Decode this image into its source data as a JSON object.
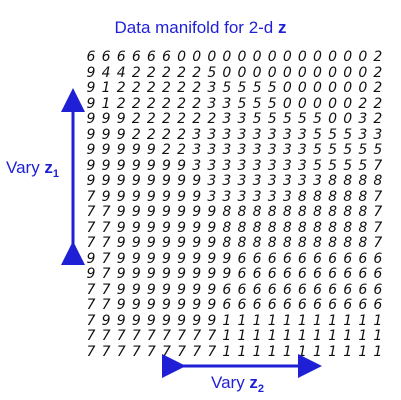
{
  "title": {
    "text": "Data manifold for 2-d ",
    "var": "z"
  },
  "labels": {
    "z1": {
      "prefix": "Vary ",
      "var": "z",
      "sub": "1"
    },
    "z2": {
      "prefix": "Vary ",
      "var": "z",
      "sub": "2"
    }
  },
  "colors": {
    "accent": "#1f1fd6",
    "digit": "#111111"
  },
  "manifold": {
    "rows": [
      "66666600000000000002",
      "94422222500000000002",
      "91222222355550000002",
      "91222222335550000022",
      "99922222233555550032",
      "99922223333333355533",
      "99999223333333355555",
      "99999993333333355557",
      "99999999333333338888",
      "79999999333333888887",
      "77999999988888888887",
      "77999999988888888887",
      "77999999988888888887",
      "97999999996666666666",
      "97999999996666666666",
      "77999999966666666666",
      "77999999966666666666",
      "79999999911111111111",
      "77777777711111111111",
      "77777777711111111111"
    ]
  }
}
